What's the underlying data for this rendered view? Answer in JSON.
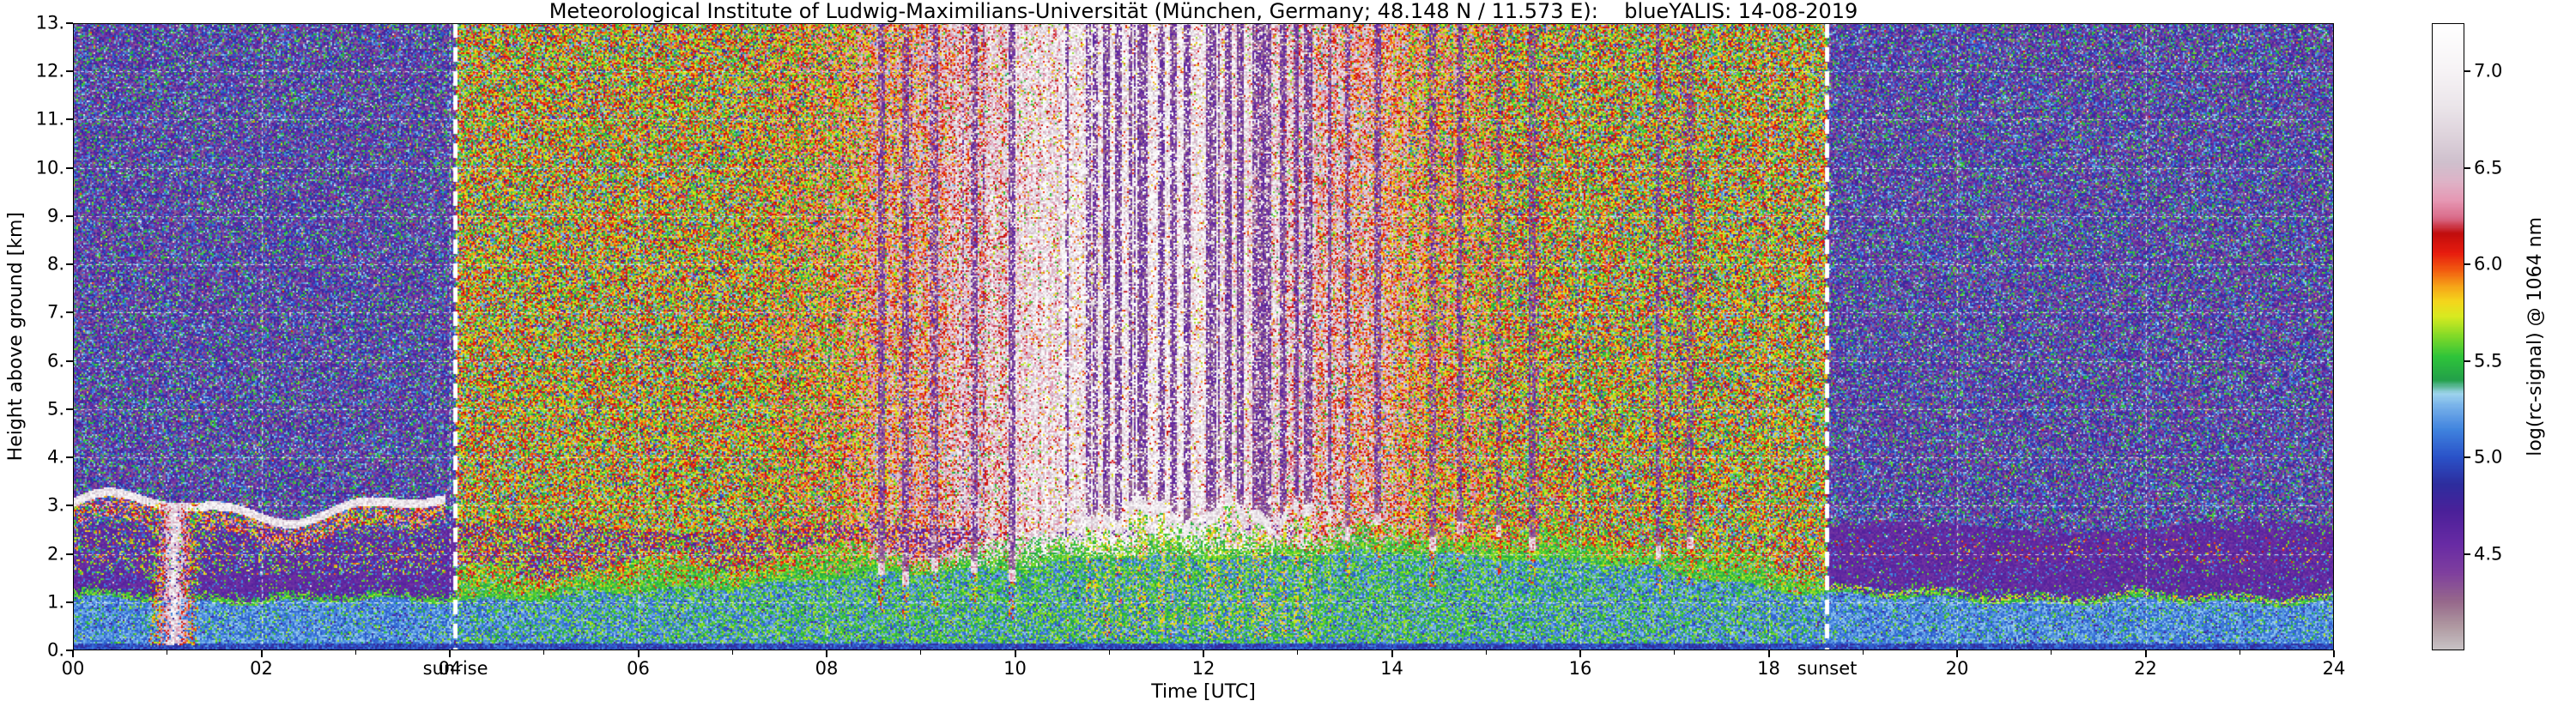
{
  "chart_data": {
    "type": "heatmap",
    "title": "Meteorological Institute of Ludwig-Maximilians-Universität (München, Germany; 48.148 N / 11.573 E):    blueYALIS: 14-08-2019",
    "xlabel": "Time [UTC]",
    "ylabel": "Height above ground [km]",
    "xlim": [
      0,
      24
    ],
    "ylim": [
      0,
      13
    ],
    "xtick_values": [
      0,
      2,
      4,
      6,
      8,
      10,
      12,
      14,
      16,
      18,
      20,
      22,
      24
    ],
    "xtick_labels": [
      "00",
      "02",
      "04",
      "06",
      "08",
      "10",
      "12",
      "14",
      "16",
      "18",
      "20",
      "22",
      "24"
    ],
    "ytick_values": [
      0,
      1,
      2,
      3,
      4,
      5,
      6,
      7,
      8,
      9,
      10,
      11,
      12,
      13
    ],
    "ytick_labels": [
      "0.",
      "1.",
      "2.",
      "3.",
      "4.",
      "5.",
      "6.",
      "7.",
      "8.",
      "9.",
      "10.",
      "11.",
      "12.",
      "13."
    ],
    "grid": {
      "style": "dashed",
      "color": "#ffffff",
      "x_every_hours": 2,
      "y_every_km": 1
    },
    "sun": {
      "sunrise_time": 4.06,
      "sunset_time": 18.62,
      "sunrise_label": "sunrise",
      "sunset_label": "sunset",
      "line_color": "#ffffff",
      "line_style": "dashed"
    },
    "colorbar": {
      "label": "log(rc-signal) @ 1064 nm",
      "vmin": 4.0,
      "vmax": 7.25,
      "ticks": [
        {
          "value": 4.5,
          "label": "4.5"
        },
        {
          "value": 5.0,
          "label": "5.0"
        },
        {
          "value": 5.5,
          "label": "5.5"
        },
        {
          "value": 6.0,
          "label": "6.0"
        },
        {
          "value": 6.5,
          "label": "6.5"
        },
        {
          "value": 7.0,
          "label": "7.0"
        }
      ]
    },
    "colormap_stops": [
      [
        4.0,
        "#c9c4c6"
      ],
      [
        4.12,
        "#b09aa2"
      ],
      [
        4.25,
        "#97698b"
      ],
      [
        4.4,
        "#7f3f9e"
      ],
      [
        4.55,
        "#682ba4"
      ],
      [
        4.72,
        "#4b2099"
      ],
      [
        4.86,
        "#2d2d9e"
      ],
      [
        5.0,
        "#2a52c8"
      ],
      [
        5.14,
        "#3f82de"
      ],
      [
        5.27,
        "#7ab4ea"
      ],
      [
        5.33,
        "#9fd4ee"
      ],
      [
        5.4,
        "#23a04a"
      ],
      [
        5.52,
        "#2ec43a"
      ],
      [
        5.63,
        "#82da28"
      ],
      [
        5.73,
        "#d8ea20"
      ],
      [
        5.81,
        "#f5d51c"
      ],
      [
        5.89,
        "#f6a118"
      ],
      [
        5.97,
        "#f25b10"
      ],
      [
        6.06,
        "#e71c0e"
      ],
      [
        6.16,
        "#c10d0d"
      ],
      [
        6.24,
        "#d96a88"
      ],
      [
        6.33,
        "#e697b3"
      ],
      [
        6.43,
        "#deb3c7"
      ],
      [
        6.53,
        "#cfc0cd"
      ],
      [
        6.66,
        "#ddd2db"
      ],
      [
        6.82,
        "#ebe5ea"
      ],
      [
        7.02,
        "#f7f4f6"
      ],
      [
        7.25,
        "#ffffff"
      ]
    ],
    "scene": {
      "description": "Lidar range-corrected signal quicklook: dark molecular noise at night, bright solar background noise between sunrise and sunset peaking near midday, aerosol boundary layer below ~2 km, residual purple layer to ~2.5 km, stratus at ~3 km before sunrise, cumulus field ~2.8 km around midday with saturated (black) tops and attenuation streaks above.",
      "night_background": {
        "value_low": 4.26,
        "value_high": 5.65
      },
      "day_background": {
        "mean_edge": 5.7,
        "mean_peak": 6.95,
        "white_band_hours": [
          10.6,
          13.3
        ]
      },
      "boundary_layer": {
        "surface_value": 4.85,
        "layer_value": 5.15,
        "green_value": 5.5,
        "height_by_hour": [
          1.05,
          1.05,
          1.0,
          1.0,
          1.05,
          1.1,
          1.2,
          1.35,
          1.5,
          1.6,
          1.75,
          1.9,
          1.95,
          2.0,
          2.0,
          1.95,
          1.85,
          1.6,
          1.3,
          1.1,
          1.05,
          1.0,
          1.0,
          1.0,
          1.0
        ]
      },
      "residual_purple_layer": {
        "top_km": 2.55,
        "value": 4.55
      },
      "clouds": [
        {
          "t0": 0.0,
          "t1": 3.95,
          "base": 2.95,
          "type": "stratus",
          "note": "wavy white layer, red/orange returns below"
        },
        {
          "t0": 0.8,
          "t1": 1.35,
          "base": 0.3,
          "type": "plume",
          "note": "strong red/white column up to ~3 km"
        },
        {
          "t0": 8.55,
          "t1": 10.2,
          "base": 1.6,
          "type": "scattered-cumulus"
        },
        {
          "t0": 10.55,
          "t1": 13.35,
          "base": 2.8,
          "type": "cumulus-field",
          "note": "white bases, black saturation above, green plumes below"
        },
        {
          "t0": 13.5,
          "t1": 14.2,
          "base": 2.55,
          "type": "scattered-cumulus"
        },
        {
          "t0": 14.4,
          "t1": 15.5,
          "base": 2.35,
          "type": "scattered-cumulus"
        },
        {
          "t0": 16.8,
          "t1": 17.25,
          "base": 2.2,
          "type": "scattered-cumulus"
        }
      ]
    }
  }
}
